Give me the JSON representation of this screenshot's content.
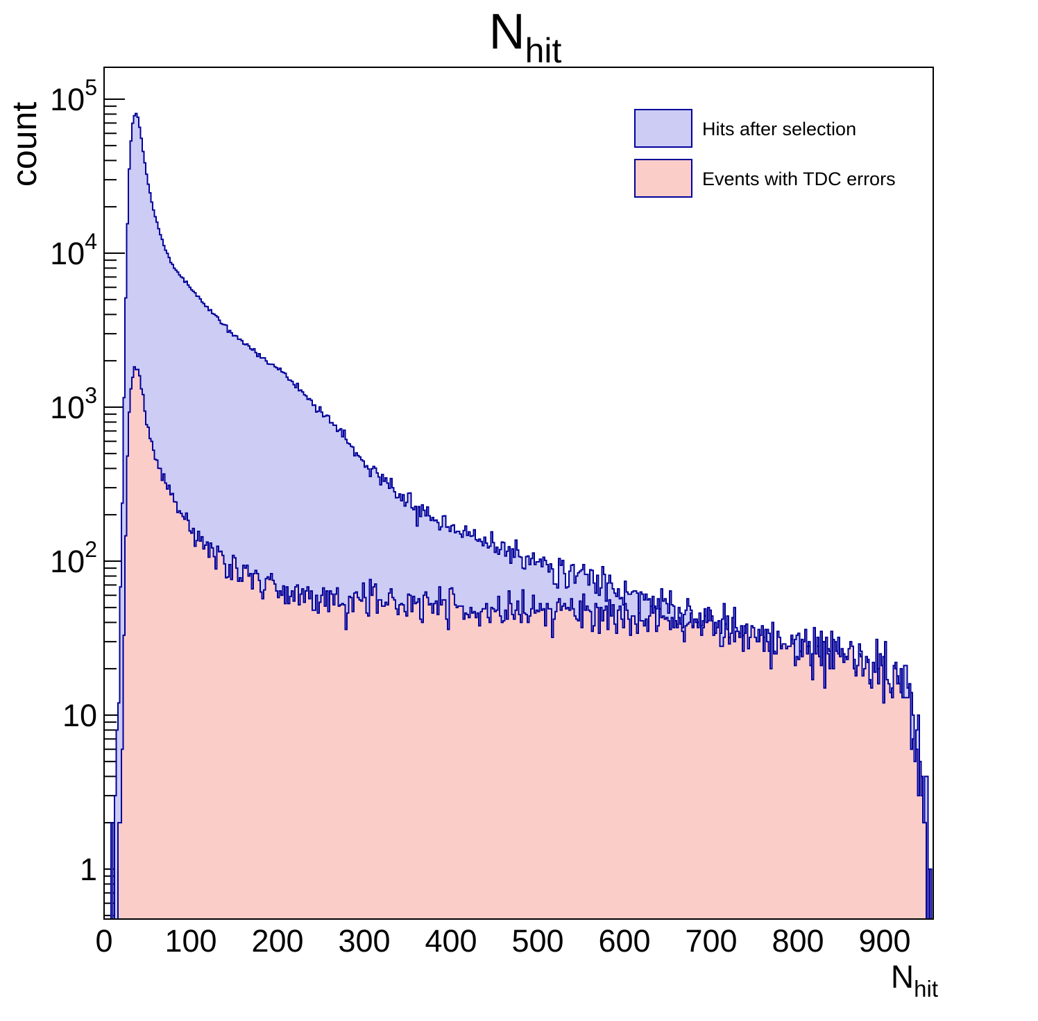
{
  "title": {
    "main": "N",
    "sub": "hit"
  },
  "axes": {
    "x": {
      "label_main": "N",
      "label_sub": "hit",
      "min": 0,
      "max": 956,
      "major_ticks": [
        0,
        100,
        200,
        300,
        400,
        500,
        600,
        700,
        800,
        900
      ],
      "minor_step": 20
    },
    "y": {
      "label": "count",
      "scale": "log",
      "min": 0.472,
      "max": 161000,
      "major_ticks": [
        1,
        10,
        100,
        1000,
        10000,
        100000
      ]
    }
  },
  "legend": {
    "entries": [
      {
        "label": "Hits after selection",
        "fill": "#ccccf5"
      },
      {
        "label": "Events with TDC errors",
        "fill": "#fbcdc9"
      }
    ]
  },
  "colors": {
    "line": "#000099",
    "frame": "#000000",
    "background": "#ffffff",
    "blue_fill": "#ccccf5",
    "pink_fill": "#fbcdc9"
  },
  "chart_data": {
    "type": "histogram",
    "style": "filled-step-outline, two overlaid histograms, pink drawn over blue",
    "bin_width": 2,
    "x_range": [
      0,
      956
    ],
    "y_scale": "log",
    "y_range": [
      0.472,
      161000
    ],
    "grid": false,
    "legend_position": "top-right inside plot",
    "noise_model": "poisson",
    "random_seed": 20240613,
    "series": [
      {
        "name": "Hits after selection",
        "fill": "#ccccf5",
        "line": "#000099",
        "envelope": [
          [
            2,
            0.2
          ],
          [
            6,
            0.8
          ],
          [
            10,
            1.2
          ],
          [
            12,
            1.5
          ],
          [
            14,
            3
          ],
          [
            16,
            8
          ],
          [
            18,
            30
          ],
          [
            20,
            110
          ],
          [
            22,
            500
          ],
          [
            24,
            2800
          ],
          [
            26,
            9500
          ],
          [
            28,
            26000
          ],
          [
            30,
            47000
          ],
          [
            33,
            70000
          ],
          [
            36,
            83000
          ],
          [
            39,
            76000
          ],
          [
            42,
            61000
          ],
          [
            46,
            42000
          ],
          [
            50,
            30000
          ],
          [
            55,
            21500
          ],
          [
            60,
            16500
          ],
          [
            65,
            13200
          ],
          [
            70,
            10800
          ],
          [
            80,
            8200
          ],
          [
            90,
            6900
          ],
          [
            100,
            5900
          ],
          [
            110,
            5100
          ],
          [
            120,
            4400
          ],
          [
            130,
            3850
          ],
          [
            140,
            3350
          ],
          [
            150,
            2950
          ],
          [
            160,
            2650
          ],
          [
            170,
            2400
          ],
          [
            180,
            2150
          ],
          [
            190,
            1950
          ],
          [
            200,
            1780
          ],
          [
            215,
            1500
          ],
          [
            230,
            1230
          ],
          [
            245,
            1000
          ],
          [
            260,
            820
          ],
          [
            275,
            650
          ],
          [
            290,
            510
          ],
          [
            300,
            440
          ],
          [
            315,
            365
          ],
          [
            330,
            305
          ],
          [
            345,
            255
          ],
          [
            360,
            220
          ],
          [
            375,
            198
          ],
          [
            390,
            180
          ],
          [
            405,
            165
          ],
          [
            420,
            152
          ],
          [
            440,
            136
          ],
          [
            460,
            122
          ],
          [
            480,
            110
          ],
          [
            500,
            100
          ],
          [
            520,
            92
          ],
          [
            540,
            84
          ],
          [
            560,
            77
          ],
          [
            580,
            70
          ],
          [
            600,
            63
          ],
          [
            620,
            57
          ],
          [
            640,
            52
          ],
          [
            660,
            47
          ],
          [
            680,
            43
          ],
          [
            700,
            40
          ],
          [
            720,
            37
          ],
          [
            740,
            34
          ],
          [
            760,
            31
          ],
          [
            780,
            29
          ],
          [
            800,
            27
          ],
          [
            820,
            25
          ],
          [
            840,
            23
          ],
          [
            860,
            21
          ],
          [
            880,
            19
          ],
          [
            900,
            17
          ],
          [
            915,
            15
          ],
          [
            928,
            13
          ],
          [
            936,
            9
          ],
          [
            942,
            5
          ],
          [
            947,
            2.5
          ],
          [
            951,
            1.2
          ],
          [
            956,
            0.8
          ]
        ]
      },
      {
        "name": "Events with TDC errors",
        "fill": "#fbcdc9",
        "line": "#000099",
        "envelope": [
          [
            14,
            0.5
          ],
          [
            16,
            1
          ],
          [
            18,
            2
          ],
          [
            20,
            5
          ],
          [
            22,
            15
          ],
          [
            24,
            70
          ],
          [
            26,
            280
          ],
          [
            28,
            750
          ],
          [
            31,
            1350
          ],
          [
            34,
            1720
          ],
          [
            37,
            1840
          ],
          [
            40,
            1700
          ],
          [
            43,
            1330
          ],
          [
            46,
            1040
          ],
          [
            50,
            790
          ],
          [
            55,
            590
          ],
          [
            60,
            465
          ],
          [
            65,
            385
          ],
          [
            70,
            330
          ],
          [
            80,
            250
          ],
          [
            90,
            200
          ],
          [
            100,
            165
          ],
          [
            110,
            142
          ],
          [
            120,
            123
          ],
          [
            130,
            109
          ],
          [
            140,
            98
          ],
          [
            150,
            89
          ],
          [
            160,
            82
          ],
          [
            170,
            77
          ],
          [
            180,
            73
          ],
          [
            190,
            69
          ],
          [
            200,
            66
          ],
          [
            220,
            62
          ],
          [
            240,
            59
          ],
          [
            260,
            57
          ],
          [
            280,
            55
          ],
          [
            300,
            54
          ],
          [
            330,
            53
          ],
          [
            360,
            52
          ],
          [
            390,
            51
          ],
          [
            420,
            50
          ],
          [
            450,
            49
          ],
          [
            480,
            48
          ],
          [
            510,
            47
          ],
          [
            540,
            46
          ],
          [
            570,
            44.5
          ],
          [
            600,
            43
          ],
          [
            630,
            41
          ],
          [
            660,
            39
          ],
          [
            690,
            37
          ],
          [
            720,
            35
          ],
          [
            750,
            32.5
          ],
          [
            780,
            30
          ],
          [
            810,
            27.5
          ],
          [
            840,
            25
          ],
          [
            870,
            22
          ],
          [
            900,
            18.5
          ],
          [
            915,
            15.5
          ],
          [
            928,
            13
          ],
          [
            936,
            9
          ],
          [
            942,
            5
          ],
          [
            947,
            2.5
          ],
          [
            951,
            1.2
          ],
          [
            956,
            0.7
          ]
        ]
      }
    ]
  }
}
